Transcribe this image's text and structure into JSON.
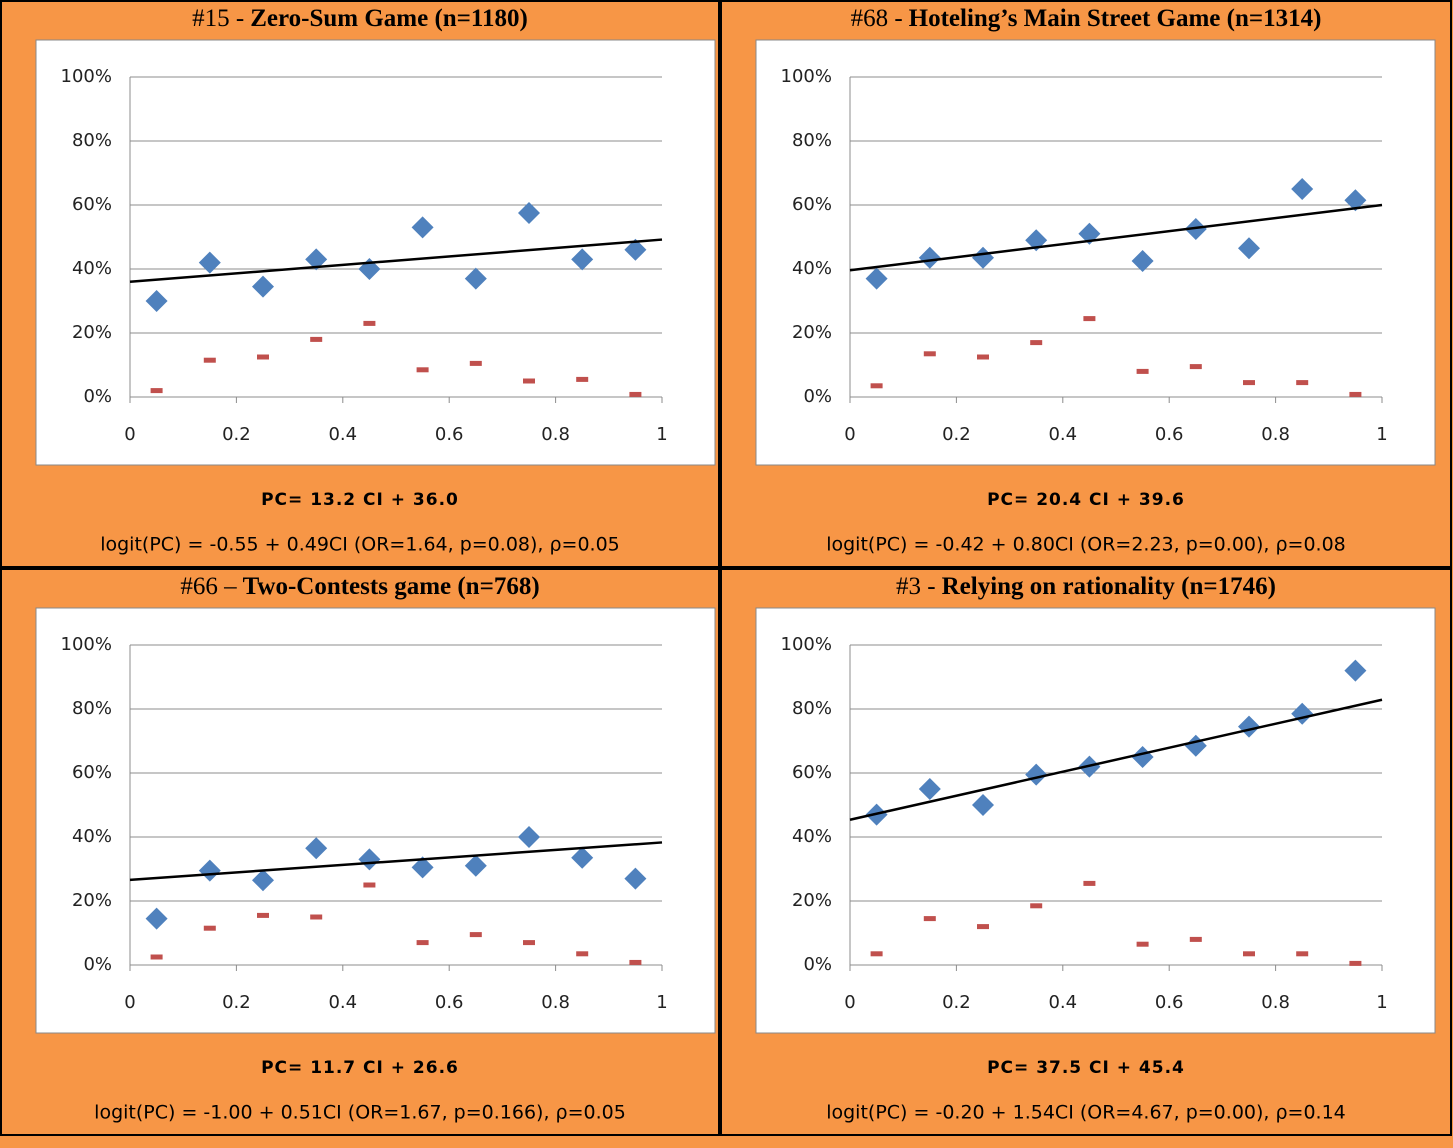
{
  "chart_data": [
    {
      "type": "scatter",
      "title": {
        "number": "#15 -",
        "name": "Zero-Sum Game (n=1180)"
      },
      "x": [
        0.05,
        0.15,
        0.25,
        0.35,
        0.45,
        0.55,
        0.65,
        0.75,
        0.85,
        0.95
      ],
      "series": [
        {
          "marker": "diamond",
          "color": "#4f81bd",
          "values": [
            30,
            42,
            34.5,
            43,
            40,
            53,
            37,
            57.5,
            43,
            46
          ]
        },
        {
          "marker": "dash",
          "color": "#c0504d",
          "values": [
            2,
            11.5,
            12.5,
            18,
            23,
            8.5,
            10.5,
            5,
            5.5,
            0.8
          ]
        },
        {
          "marker": "line",
          "color": "#000000",
          "x": [
            0,
            1
          ],
          "values": [
            36.0,
            49.2
          ]
        }
      ],
      "xlim": [
        0,
        1
      ],
      "xticks": [
        0,
        0.2,
        0.4,
        0.6,
        0.8,
        1
      ],
      "ylim": [
        0,
        100
      ],
      "yticks": [
        {
          "value": 0,
          "label": "0%"
        },
        {
          "value": 20,
          "label": "20%"
        },
        {
          "value": 40,
          "label": "40%"
        },
        {
          "value": 60,
          "label": "60%"
        },
        {
          "value": 80,
          "label": "80%"
        },
        {
          "value": 100,
          "label": "100%"
        }
      ],
      "grid": true,
      "equation": "PC= 13.2 CI + 36.0",
      "logit": "logit(PC) = -0.55 + 0.49CI (OR=1.64, p=0.08), ρ=0.05"
    },
    {
      "type": "scatter",
      "title": {
        "number": "#68 -",
        "name": "Hoteling’s Main Street Game (n=1314)"
      },
      "x": [
        0.05,
        0.15,
        0.25,
        0.35,
        0.45,
        0.55,
        0.65,
        0.75,
        0.85,
        0.95
      ],
      "series": [
        {
          "marker": "diamond",
          "color": "#4f81bd",
          "values": [
            37,
            43.5,
            43.5,
            49,
            51,
            42.5,
            52.5,
            46.5,
            65,
            61.5
          ]
        },
        {
          "marker": "dash",
          "color": "#c0504d",
          "values": [
            3.5,
            13.5,
            12.5,
            17,
            24.5,
            8,
            9.5,
            4.5,
            4.5,
            0.8
          ]
        },
        {
          "marker": "line",
          "color": "#000000",
          "x": [
            0,
            1
          ],
          "values": [
            39.6,
            60.0
          ]
        }
      ],
      "xlim": [
        0,
        1
      ],
      "xticks": [
        0,
        0.2,
        0.4,
        0.6,
        0.8,
        1
      ],
      "ylim": [
        0,
        100
      ],
      "yticks": [
        {
          "value": 0,
          "label": "0%"
        },
        {
          "value": 20,
          "label": "20%"
        },
        {
          "value": 40,
          "label": "40%"
        },
        {
          "value": 60,
          "label": "60%"
        },
        {
          "value": 80,
          "label": "80%"
        },
        {
          "value": 100,
          "label": "100%"
        }
      ],
      "grid": true,
      "equation": "PC= 20.4 CI + 39.6",
      "logit": "logit(PC) = -0.42 + 0.80CI (OR=2.23, p=0.00), ρ=0.08"
    },
    {
      "type": "scatter",
      "title": {
        "number": "#66 –",
        "name": "Two-Contests game (n=768)"
      },
      "x": [
        0.05,
        0.15,
        0.25,
        0.35,
        0.45,
        0.55,
        0.65,
        0.75,
        0.85,
        0.95
      ],
      "series": [
        {
          "marker": "diamond",
          "color": "#4f81bd",
          "values": [
            14.5,
            29.5,
            26.5,
            36.5,
            33,
            30.5,
            31,
            40,
            33.5,
            27
          ]
        },
        {
          "marker": "dash",
          "color": "#c0504d",
          "values": [
            2.5,
            11.5,
            15.5,
            15,
            25,
            7,
            9.5,
            7,
            3.5,
            0.8
          ]
        },
        {
          "marker": "line",
          "color": "#000000",
          "x": [
            0,
            1
          ],
          "values": [
            26.6,
            38.3
          ]
        }
      ],
      "xlim": [
        0,
        1
      ],
      "xticks": [
        0,
        0.2,
        0.4,
        0.6,
        0.8,
        1
      ],
      "ylim": [
        0,
        100
      ],
      "yticks": [
        {
          "value": 0,
          "label": "0%"
        },
        {
          "value": 20,
          "label": "20%"
        },
        {
          "value": 40,
          "label": "40%"
        },
        {
          "value": 60,
          "label": "60%"
        },
        {
          "value": 80,
          "label": "80%"
        },
        {
          "value": 100,
          "label": "100%"
        }
      ],
      "grid": true,
      "equation": "PC= 11.7 CI + 26.6",
      "logit": "logit(PC) = -1.00 + 0.51CI (OR=1.67, p=0.166), ρ=0.05"
    },
    {
      "type": "scatter",
      "title": {
        "number": "#3 -",
        "name": "Relying on rationality (n=1746)"
      },
      "x": [
        0.05,
        0.15,
        0.25,
        0.35,
        0.45,
        0.55,
        0.65,
        0.75,
        0.85,
        0.95
      ],
      "series": [
        {
          "marker": "diamond",
          "color": "#4f81bd",
          "values": [
            47,
            55,
            50,
            59.5,
            62,
            65,
            68.5,
            74.5,
            78.5,
            92
          ]
        },
        {
          "marker": "dash",
          "color": "#c0504d",
          "values": [
            3.5,
            14.5,
            12,
            18.5,
            25.5,
            6.5,
            8,
            3.5,
            3.5,
            0.5
          ]
        },
        {
          "marker": "line",
          "color": "#000000",
          "x": [
            0,
            1
          ],
          "values": [
            45.4,
            82.9
          ]
        }
      ],
      "xlim": [
        0,
        1
      ],
      "xticks": [
        0,
        0.2,
        0.4,
        0.6,
        0.8,
        1
      ],
      "ylim": [
        0,
        100
      ],
      "yticks": [
        {
          "value": 0,
          "label": "0%"
        },
        {
          "value": 20,
          "label": "20%"
        },
        {
          "value": 40,
          "label": "40%"
        },
        {
          "value": 60,
          "label": "60%"
        },
        {
          "value": 80,
          "label": "80%"
        },
        {
          "value": 100,
          "label": "100%"
        }
      ],
      "grid": true,
      "equation": "PC= 37.5 CI + 45.4",
      "logit": "logit(PC) = -0.20 + 1.54CI (OR=4.67, p=0.00), ρ=0.14"
    }
  ]
}
